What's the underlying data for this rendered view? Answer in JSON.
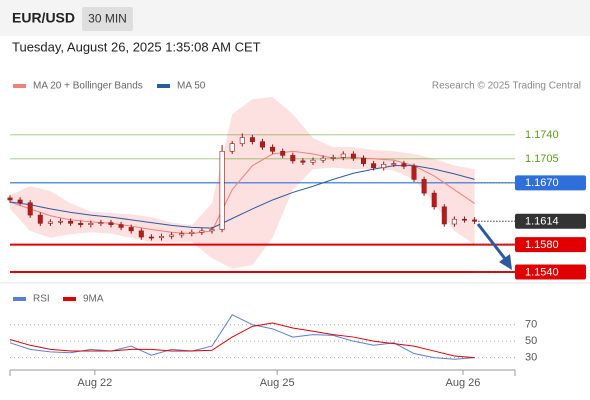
{
  "header": {
    "symbol": "EUR/USD",
    "timeframe": "30 MIN",
    "timestamp": "Tuesday, August 26, 2025 1:35:08 AM CET"
  },
  "chart_data": [
    {
      "type": "candlestick",
      "attribution": "Research © 2025 Trading Central",
      "xlim": [
        0,
        100
      ],
      "ylim": [
        1.1524,
        1.1798
      ],
      "up_color": "#ffffff",
      "down_color": "#b71c1c",
      "wick_color": "#8b1a1a",
      "x": [
        0,
        2,
        4,
        6,
        8,
        10,
        12,
        14,
        16,
        18,
        20,
        22,
        24,
        26,
        28,
        30,
        32,
        34,
        36,
        38,
        40,
        42,
        44,
        46,
        48,
        50,
        52,
        54,
        56,
        58,
        60,
        62,
        64,
        66,
        68,
        70,
        72,
        74,
        76,
        78,
        80,
        82,
        84,
        86,
        88,
        90,
        92
      ],
      "open": [
        1.1648,
        1.1645,
        1.1641,
        1.1623,
        1.1611,
        1.1613,
        1.1614,
        1.1611,
        1.1609,
        1.1611,
        1.1612,
        1.1609,
        1.1605,
        1.16,
        1.1591,
        1.159,
        1.1592,
        1.1594,
        1.1596,
        1.1598,
        1.16,
        1.1602,
        1.1716,
        1.1727,
        1.1736,
        1.173,
        1.1722,
        1.1716,
        1.171,
        1.1702,
        1.17,
        1.1703,
        1.1706,
        1.1707,
        1.1712,
        1.1706,
        1.1698,
        1.1692,
        1.1697,
        1.1698,
        1.1694,
        1.1675,
        1.1655,
        1.1635,
        1.161,
        1.1617,
        1.1616
      ],
      "high": [
        1.1652,
        1.1649,
        1.1645,
        1.1627,
        1.1617,
        1.1618,
        1.1618,
        1.1615,
        1.1615,
        1.1616,
        1.1616,
        1.1613,
        1.1609,
        1.1604,
        1.1595,
        1.1596,
        1.1598,
        1.16,
        1.1602,
        1.1604,
        1.1606,
        1.1725,
        1.1731,
        1.1742,
        1.174,
        1.1734,
        1.1726,
        1.172,
        1.1714,
        1.1706,
        1.1707,
        1.171,
        1.1711,
        1.1716,
        1.1716,
        1.171,
        1.1702,
        1.1701,
        1.1702,
        1.1702,
        1.1698,
        1.1679,
        1.1659,
        1.1639,
        1.1621,
        1.1621,
        1.162
      ],
      "low": [
        1.1641,
        1.1637,
        1.1619,
        1.1607,
        1.1607,
        1.1609,
        1.1607,
        1.1605,
        1.1605,
        1.1607,
        1.1605,
        1.1601,
        1.1596,
        1.1587,
        1.1586,
        1.1586,
        1.1588,
        1.159,
        1.1592,
        1.1594,
        1.1596,
        1.1598,
        1.1712,
        1.1723,
        1.1726,
        1.1718,
        1.1712,
        1.1706,
        1.1698,
        1.1696,
        1.1696,
        1.1699,
        1.1702,
        1.1703,
        1.1702,
        1.1694,
        1.1688,
        1.1688,
        1.1693,
        1.169,
        1.1671,
        1.1651,
        1.1631,
        1.1606,
        1.1606,
        1.1612,
        1.161
      ],
      "close": [
        1.1645,
        1.1641,
        1.1623,
        1.1611,
        1.1613,
        1.1614,
        1.1611,
        1.1609,
        1.1611,
        1.1612,
        1.1609,
        1.1605,
        1.16,
        1.1591,
        1.159,
        1.1592,
        1.1594,
        1.1596,
        1.1598,
        1.16,
        1.1602,
        1.1716,
        1.1727,
        1.1736,
        1.173,
        1.1722,
        1.1716,
        1.171,
        1.1702,
        1.17,
        1.1703,
        1.1706,
        1.1707,
        1.1712,
        1.1706,
        1.1698,
        1.1692,
        1.1697,
        1.1698,
        1.1694,
        1.1675,
        1.1655,
        1.1635,
        1.161,
        1.1617,
        1.1616,
        1.1614
      ],
      "series": [
        {
          "name": "MA 20 + Bollinger Bands",
          "color": "#f08080",
          "band_color": "#fde0e0",
          "x": [
            0,
            4,
            8,
            12,
            16,
            20,
            24,
            28,
            32,
            36,
            40,
            44,
            48,
            52,
            56,
            60,
            64,
            68,
            72,
            76,
            80,
            84,
            88,
            92
          ],
          "values": [
            1.1642,
            1.1632,
            1.1622,
            1.1616,
            1.1613,
            1.1611,
            1.1607,
            1.1602,
            1.1598,
            1.1596,
            1.16,
            1.166,
            1.1695,
            1.1712,
            1.1716,
            1.1712,
            1.1706,
            1.1707,
            1.1705,
            1.1703,
            1.1695,
            1.168,
            1.166,
            1.164
          ],
          "upper": [
            1.1652,
            1.1665,
            1.1658,
            1.164,
            1.1628,
            1.1626,
            1.1624,
            1.162,
            1.1612,
            1.1608,
            1.164,
            1.177,
            1.1792,
            1.1795,
            1.177,
            1.1735,
            1.1722,
            1.1722,
            1.1718,
            1.1716,
            1.1712,
            1.1705,
            1.1695,
            1.169
          ],
          "lower": [
            1.1632,
            1.16,
            1.159,
            1.1595,
            1.1598,
            1.1596,
            1.159,
            1.1584,
            1.1584,
            1.1584,
            1.156,
            1.1545,
            1.155,
            1.159,
            1.166,
            1.169,
            1.1692,
            1.169,
            1.169,
            1.1688,
            1.1675,
            1.164,
            1.16,
            1.158
          ]
        },
        {
          "name": "MA 50",
          "color": "#2c5aa0",
          "x": [
            0,
            4,
            8,
            12,
            16,
            20,
            24,
            28,
            32,
            36,
            40,
            44,
            48,
            52,
            56,
            60,
            64,
            68,
            72,
            76,
            80,
            84,
            88,
            92
          ],
          "values": [
            1.1642,
            1.1638,
            1.1632,
            1.1627,
            1.1623,
            1.162,
            1.1616,
            1.1612,
            1.1608,
            1.1605,
            1.1604,
            1.1618,
            1.1632,
            1.1645,
            1.1656,
            1.1665,
            1.1675,
            1.1684,
            1.169,
            1.1695,
            1.1695,
            1.169,
            1.1683,
            1.1675
          ]
        }
      ],
      "levels": [
        {
          "value": 1.174,
          "label": "1.1740",
          "color": "#5a9e1a",
          "style": "plot",
          "box": false
        },
        {
          "value": 1.1705,
          "color": "#5a9e1a",
          "style": "plot",
          "box": false
        },
        {
          "value": 1.167,
          "label": "1.1670",
          "color": "#2f6fdc",
          "style": "plot",
          "box": true
        },
        {
          "value": 1.1614,
          "color": "#333333",
          "style": "dotted",
          "box": true
        },
        {
          "value": 1.158,
          "label": "1.1580",
          "color": "#e00000",
          "style": "full",
          "box": true
        },
        {
          "value": 1.154,
          "label": "1.1540",
          "color": "#e00000",
          "style": "full",
          "box": true
        }
      ]
    },
    {
      "type": "line",
      "xlim": [
        0,
        100
      ],
      "ylim": [
        15,
        100
      ],
      "yticks": [
        70,
        50,
        30
      ],
      "xticks": [
        {
          "value": 16.8,
          "label": "Aug 22"
        },
        {
          "value": 52.9,
          "label": "Aug 25"
        },
        {
          "value": 89.7,
          "label": "Aug 26"
        }
      ],
      "series": [
        {
          "name": "RSI",
          "color": "#5b7fd6",
          "x": [
            0,
            4,
            8,
            12,
            16,
            20,
            24,
            28,
            32,
            36,
            40,
            44,
            48,
            52,
            56,
            60,
            64,
            68,
            72,
            76,
            80,
            84,
            88,
            92
          ],
          "values": [
            48,
            40,
            37,
            36,
            40,
            38,
            44,
            33,
            40,
            38,
            44,
            82,
            70,
            65,
            55,
            58,
            57,
            50,
            45,
            48,
            35,
            30,
            28,
            30
          ]
        },
        {
          "name": "9MA",
          "color": "#e00000",
          "x": [
            0,
            4,
            8,
            12,
            16,
            20,
            24,
            28,
            32,
            36,
            40,
            44,
            48,
            52,
            56,
            60,
            64,
            68,
            72,
            76,
            80,
            84,
            88,
            92
          ],
          "values": [
            52,
            45,
            40,
            38,
            38,
            38,
            40,
            40,
            38,
            38,
            39,
            55,
            68,
            72,
            66,
            62,
            58,
            55,
            50,
            47,
            44,
            38,
            32,
            30
          ]
        }
      ]
    }
  ]
}
